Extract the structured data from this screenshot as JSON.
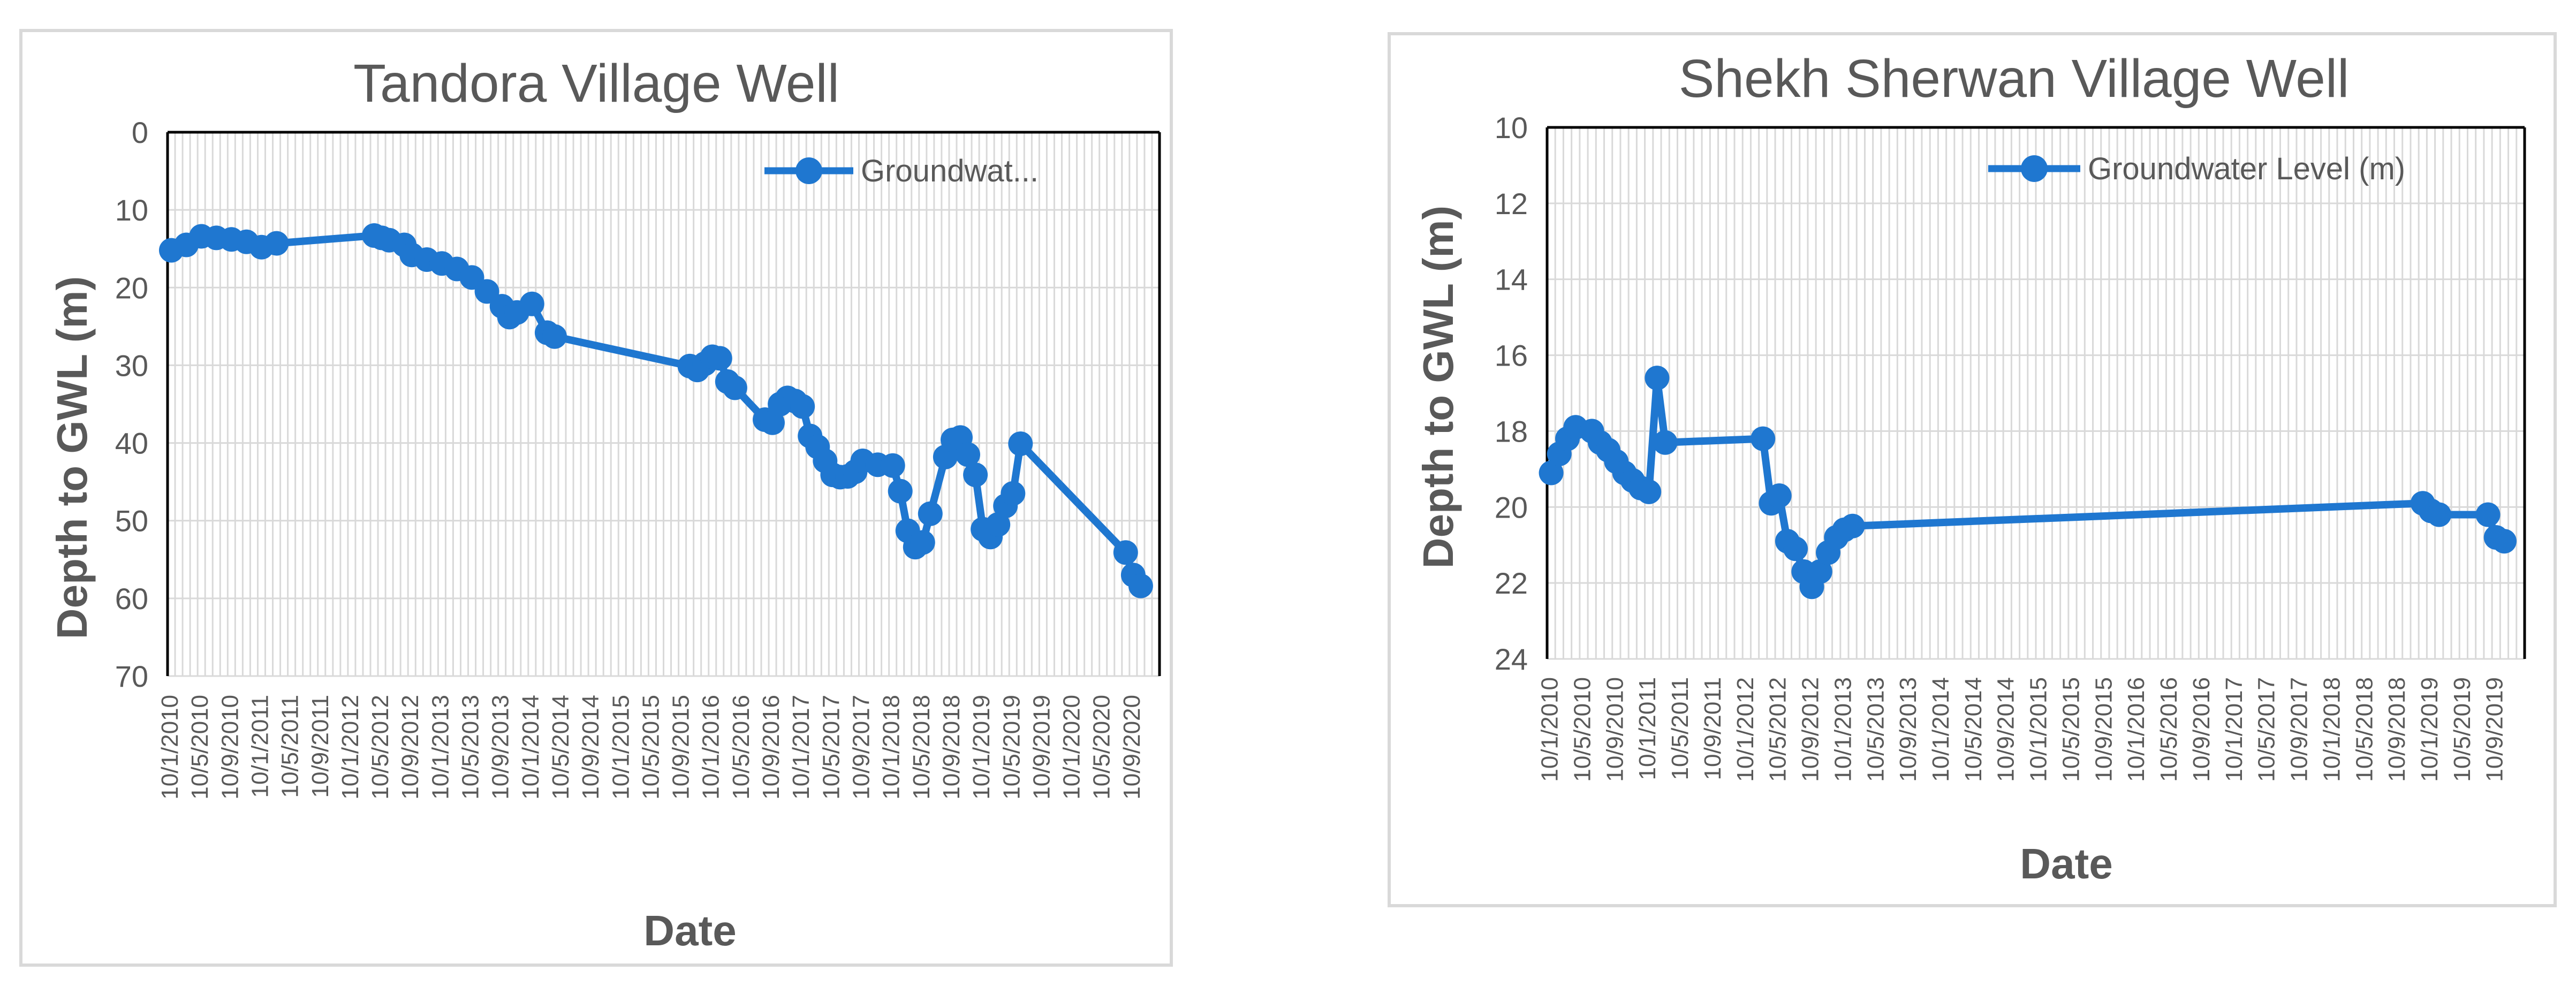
{
  "chart_data": [
    {
      "type": "line",
      "title": "Tandora Village Well",
      "xlabel": "Date",
      "ylabel": "Depth to GWL (m)",
      "ylim": [
        0,
        70
      ],
      "y_inverted": true,
      "yticks": [
        "0",
        "10",
        "20",
        "30",
        "40",
        "50",
        "60",
        "70"
      ],
      "grid": true,
      "legend_position": "top-right",
      "color": "#1f77d0",
      "x_tick_labels": [
        "10/1/2010",
        "10/5/2010",
        "10/9/2010",
        "10/1/2011",
        "10/5/2011",
        "10/9/2011",
        "10/1/2012",
        "10/5/2012",
        "10/9/2012",
        "10/1/2013",
        "10/5/2013",
        "10/9/2013",
        "10/1/2014",
        "10/5/2014",
        "10/9/2014",
        "10/1/2015",
        "10/5/2015",
        "10/9/2015",
        "10/1/2016",
        "10/5/2016",
        "10/9/2016",
        "10/1/2017",
        "10/5/2017",
        "10/9/2017",
        "10/1/2018",
        "10/5/2018",
        "10/9/2018",
        "10/1/2019",
        "10/5/2019",
        "10/9/2019",
        "10/1/2020",
        "10/5/2020",
        "10/9/2020"
      ],
      "series": [
        {
          "name": "Groundwat...",
          "points": [
            {
              "x": "10/1/2010",
              "y": 15.2
            },
            {
              "x": "10/3/2010",
              "y": 14.5
            },
            {
              "x": "10/5/2010",
              "y": 13.4
            },
            {
              "x": "10/7/2010",
              "y": 13.6
            },
            {
              "x": "10/9/2010",
              "y": 13.8
            },
            {
              "x": "10/11/2010",
              "y": 14.1
            },
            {
              "x": "10/1/2011",
              "y": 14.8
            },
            {
              "x": "10/3/2011",
              "y": 14.3
            },
            {
              "x": "10/4/2012",
              "y": 13.3
            },
            {
              "x": "10/5/2012",
              "y": 13.6
            },
            {
              "x": "10/6/2012",
              "y": 13.9
            },
            {
              "x": "10/8/2012",
              "y": 14.5
            },
            {
              "x": "10/9/2012",
              "y": 15.8
            },
            {
              "x": "10/11/2012",
              "y": 16.4
            },
            {
              "x": "10/1/2013",
              "y": 16.9
            },
            {
              "x": "10/3/2013",
              "y": 17.6
            },
            {
              "x": "10/5/2013",
              "y": 18.7
            },
            {
              "x": "10/7/2013",
              "y": 20.5
            },
            {
              "x": "10/9/2013",
              "y": 22.4
            },
            {
              "x": "10/10/2013",
              "y": 23.8
            },
            {
              "x": "10/11/2013",
              "y": 23.2
            },
            {
              "x": "10/1/2014",
              "y": 22.1
            },
            {
              "x": "10/3/2014",
              "y": 25.8
            },
            {
              "x": "10/4/2014",
              "y": 26.3
            },
            {
              "x": "10/10/2015",
              "y": 30.1
            },
            {
              "x": "10/11/2015",
              "y": 30.6
            },
            {
              "x": "10/12/2015",
              "y": 29.8
            },
            {
              "x": "10/1/2016",
              "y": 28.9
            },
            {
              "x": "10/2/2016",
              "y": 29.1
            },
            {
              "x": "10/3/2016",
              "y": 32.1
            },
            {
              "x": "10/4/2016",
              "y": 32.9
            },
            {
              "x": "10/8/2016",
              "y": 37.0
            },
            {
              "x": "10/9/2016",
              "y": 37.4
            },
            {
              "x": "10/10/2016",
              "y": 35.0
            },
            {
              "x": "10/11/2016",
              "y": 34.2
            },
            {
              "x": "10/12/2016",
              "y": 34.6
            },
            {
              "x": "10/1/2017",
              "y": 35.3
            },
            {
              "x": "10/2/2017",
              "y": 39.1
            },
            {
              "x": "10/3/2017",
              "y": 40.5
            },
            {
              "x": "10/4/2017",
              "y": 42.3
            },
            {
              "x": "10/5/2017",
              "y": 44.1
            },
            {
              "x": "10/6/2017",
              "y": 44.4
            },
            {
              "x": "10/7/2017",
              "y": 44.3
            },
            {
              "x": "10/8/2017",
              "y": 43.7
            },
            {
              "x": "10/9/2017",
              "y": 42.3
            },
            {
              "x": "10/11/2017",
              "y": 42.8
            },
            {
              "x": "10/1/2018",
              "y": 42.9
            },
            {
              "x": "10/2/2018",
              "y": 46.2
            },
            {
              "x": "10/3/2018",
              "y": 51.3
            },
            {
              "x": "10/4/2018",
              "y": 53.4
            },
            {
              "x": "10/5/2018",
              "y": 52.8
            },
            {
              "x": "10/6/2018",
              "y": 49.1
            },
            {
              "x": "10/8/2018",
              "y": 41.8
            },
            {
              "x": "10/9/2018",
              "y": 39.6
            },
            {
              "x": "10/10/2018",
              "y": 39.3
            },
            {
              "x": "10/11/2018",
              "y": 41.5
            },
            {
              "x": "10/12/2018",
              "y": 44.1
            },
            {
              "x": "10/1/2019",
              "y": 51.1
            },
            {
              "x": "10/2/2019",
              "y": 52.1
            },
            {
              "x": "10/3/2019",
              "y": 50.5
            },
            {
              "x": "10/4/2019",
              "y": 48.1
            },
            {
              "x": "10/5/2019",
              "y": 46.5
            },
            {
              "x": "10/6/2019",
              "y": 40.1
            },
            {
              "x": "10/8/2020",
              "y": 54.1
            },
            {
              "x": "10/9/2020",
              "y": 57.0
            },
            {
              "x": "10/10/2020",
              "y": 58.4
            }
          ]
        }
      ]
    },
    {
      "type": "line",
      "title": "Shekh Sherwan Village Well",
      "xlabel": "Date",
      "ylabel": "Depth to GWL (m)",
      "ylim": [
        10,
        24
      ],
      "y_inverted": true,
      "yticks": [
        "10",
        "12",
        "14",
        "16",
        "18",
        "20",
        "22",
        "24"
      ],
      "grid": true,
      "legend_position": "top-right",
      "color": "#1f77d0",
      "x_tick_labels": [
        "10/1/2010",
        "10/5/2010",
        "10/9/2010",
        "10/1/2011",
        "10/5/2011",
        "10/9/2011",
        "10/1/2012",
        "10/5/2012",
        "10/9/2012",
        "10/1/2013",
        "10/5/2013",
        "10/9/2013",
        "10/1/2014",
        "10/5/2014",
        "10/9/2014",
        "10/1/2015",
        "10/5/2015",
        "10/9/2015",
        "10/1/2016",
        "10/5/2016",
        "10/9/2016",
        "10/1/2017",
        "10/5/2017",
        "10/9/2017",
        "10/1/2018",
        "10/5/2018",
        "10/9/2018",
        "10/1/2019",
        "10/5/2019",
        "10/9/2019"
      ],
      "series": [
        {
          "name": "Groundwater Level (m)",
          "points": [
            {
              "x": "10/1/2010",
              "y": 19.1
            },
            {
              "x": "10/2/2010",
              "y": 18.6
            },
            {
              "x": "10/3/2010",
              "y": 18.2
            },
            {
              "x": "10/4/2010",
              "y": 17.9
            },
            {
              "x": "10/6/2010",
              "y": 18.0
            },
            {
              "x": "10/7/2010",
              "y": 18.3
            },
            {
              "x": "10/8/2010",
              "y": 18.5
            },
            {
              "x": "10/9/2010",
              "y": 18.8
            },
            {
              "x": "10/10/2010",
              "y": 19.1
            },
            {
              "x": "10/11/2010",
              "y": 19.3
            },
            {
              "x": "10/12/2010",
              "y": 19.5
            },
            {
              "x": "10/1/2011",
              "y": 19.6
            },
            {
              "x": "10/2/2011",
              "y": 16.6
            },
            {
              "x": "10/3/2011",
              "y": 18.3
            },
            {
              "x": "10/3/2012",
              "y": 18.2
            },
            {
              "x": "10/4/2012",
              "y": 19.9
            },
            {
              "x": "10/5/2012",
              "y": 19.7
            },
            {
              "x": "10/6/2012",
              "y": 20.9
            },
            {
              "x": "10/7/2012",
              "y": 21.1
            },
            {
              "x": "10/8/2012",
              "y": 21.7
            },
            {
              "x": "10/9/2012",
              "y": 22.1
            },
            {
              "x": "10/10/2012",
              "y": 21.7
            },
            {
              "x": "10/11/2012",
              "y": 21.2
            },
            {
              "x": "10/12/2012",
              "y": 20.8
            },
            {
              "x": "10/1/2013",
              "y": 20.6
            },
            {
              "x": "10/2/2013",
              "y": 20.5
            },
            {
              "x": "10/12/2018",
              "y": 19.9
            },
            {
              "x": "10/1/2019",
              "y": 20.1
            },
            {
              "x": "10/2/2019",
              "y": 20.2
            },
            {
              "x": "10/8/2019",
              "y": 20.2
            },
            {
              "x": "10/9/2019",
              "y": 20.8
            },
            {
              "x": "10/10/2019",
              "y": 20.9
            }
          ]
        }
      ]
    }
  ]
}
